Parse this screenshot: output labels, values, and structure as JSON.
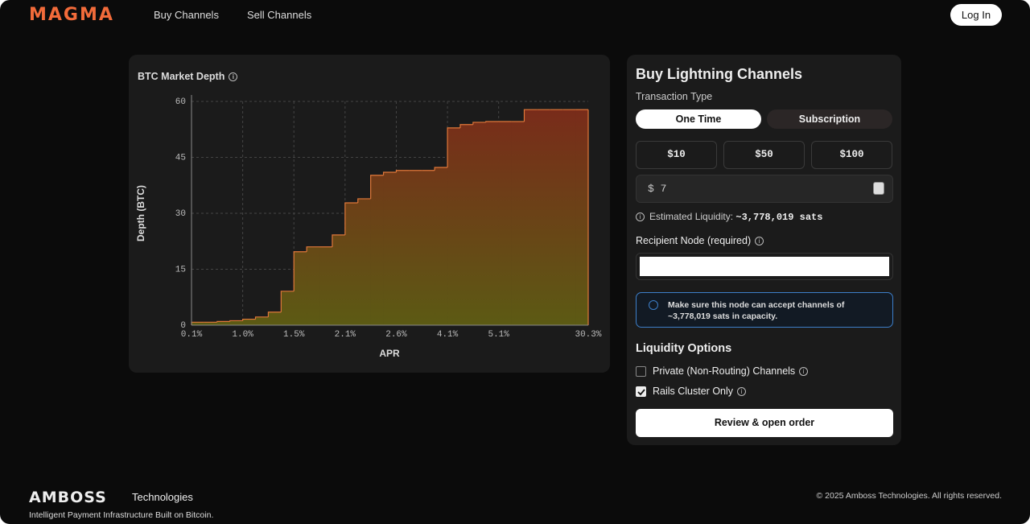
{
  "nav": {
    "logo": "MAGMA",
    "links": [
      "Buy Channels",
      "Sell Channels"
    ],
    "login": "Log In"
  },
  "chart_data": {
    "type": "step-area",
    "title": "BTC Market Depth",
    "y_label": "Depth (BTC)",
    "x_label": "APR",
    "categories": [
      "0.1%",
      null,
      null,
      null,
      "1.0%",
      null,
      null,
      null,
      "1.5%",
      null,
      null,
      null,
      "2.1%",
      null,
      null,
      null,
      "2.6%",
      null,
      null,
      null,
      "4.1%",
      null,
      null,
      null,
      "5.1%",
      null,
      null,
      null,
      null,
      null,
      null,
      "30.3%"
    ],
    "values": [
      0.8,
      0.8,
      1.0,
      1.2,
      1.6,
      2.2,
      3.5,
      9.1,
      19.7,
      21,
      21,
      24.2,
      32.8,
      33.9,
      40.2,
      41,
      41.5,
      41.5,
      41.5,
      42.3,
      52.9,
      53.8,
      54.4,
      54.6,
      54.6,
      54.6,
      57.8,
      57.8,
      57.8,
      57.8,
      57.8,
      57.8
    ],
    "color": "#e0783a",
    "ylim": [
      0,
      60
    ],
    "yticks": [
      0,
      15,
      30,
      45,
      60
    ],
    "grid": true
  },
  "form": {
    "title": "Buy Lightning Channels",
    "transaction_label": "Transaction Type",
    "tabs": [
      "One Time",
      "Subscription"
    ],
    "amounts": [
      "$10",
      "$50",
      "$100"
    ],
    "currency": "$",
    "amount_value": "7",
    "estimate_label": "Estimated Liquidity:",
    "estimate_value": "~3,778,019 sats",
    "recipient_label": "Recipient Node (required)",
    "notice": "Make sure this node can accept channels of ~3,778,019 sats in capacity.",
    "options_title": "Liquidity Options",
    "options": [
      {
        "label": "Private (Non-Routing) Channels",
        "checked": false
      },
      {
        "label": "Rails Cluster Only",
        "checked": true
      }
    ],
    "submit": "Review & open order"
  },
  "footer": {
    "brand": "AMBOSS",
    "brand_suffix": "Technologies",
    "tagline": "Intelligent Payment Infrastructure Built on Bitcoin.",
    "copyright": "© 2025 Amboss Technologies. All rights reserved."
  }
}
